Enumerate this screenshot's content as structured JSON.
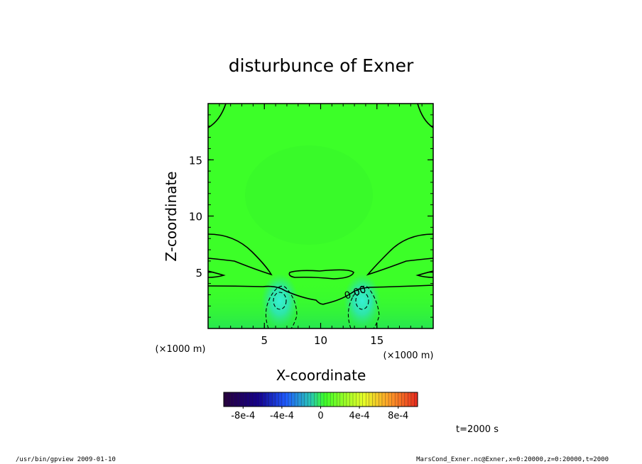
{
  "chart_data": {
    "type": "heatmap",
    "title": "disturbunce of Exner",
    "xlabel": "X-coordinate",
    "ylabel": "Z-coordinate",
    "x_unit": "(×1000 m)",
    "y_unit": "(×1000 m)",
    "xlim": [
      0,
      20
    ],
    "ylim": [
      0,
      20
    ],
    "xticks": [
      "5",
      "10",
      "15"
    ],
    "yticks": [
      "5",
      "10",
      "15"
    ],
    "contour_label": "0.00",
    "colorbar": {
      "ticks": [
        "-8e-4",
        "-4e-4",
        "0",
        "4e-4",
        "8e-4"
      ],
      "range": [
        -0.001,
        0.001
      ]
    },
    "time_label": "t=2000 s",
    "colors": {
      "field": "#3cff28",
      "field_light": "#5af02a",
      "field_low": "#27e650",
      "field_min": "#2de6a5"
    }
  },
  "footer": {
    "left": "/usr/bin/gpview   2009-01-10",
    "right": "MarsCond_Exner.nc@Exner,x=0:20000,z=0:20000,t=2000"
  }
}
